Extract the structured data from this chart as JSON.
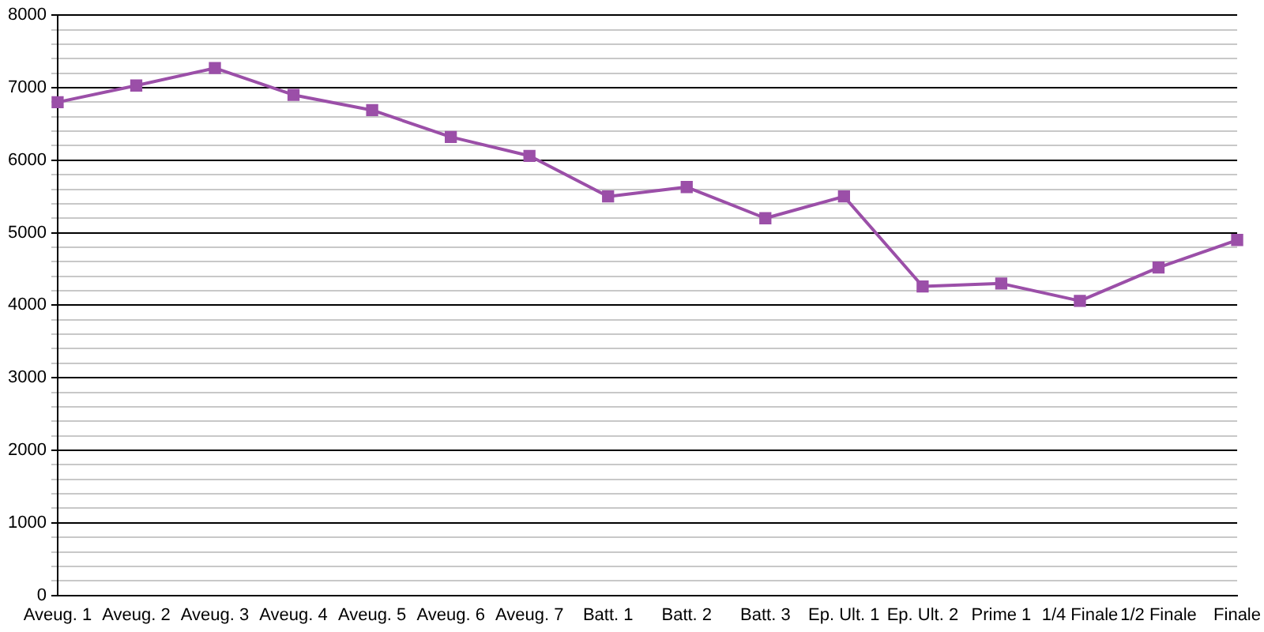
{
  "chart_data": {
    "type": "line",
    "categories": [
      "Aveug. 1",
      "Aveug. 2",
      "Aveug. 3",
      "Aveug. 4",
      "Aveug. 5",
      "Aveug. 6",
      "Aveug. 7",
      "Batt. 1",
      "Batt. 2",
      "Batt. 3",
      "Ep. Ult. 1",
      "Ep. Ult. 2",
      "Prime 1",
      "1/4 Finale",
      "1/2 Finale",
      "Finale"
    ],
    "series": [
      {
        "color": "#9b4fa8",
        "values": [
          6800,
          7030,
          7270,
          6900,
          6690,
          6320,
          6060,
          5500,
          5630,
          5200,
          5500,
          4260,
          4300,
          4060,
          4520,
          4900
        ]
      }
    ],
    "ylim": [
      0,
      8000
    ],
    "yticks": [
      0,
      {
        "value": 200,
        "label": null
      },
      {
        "value": 400,
        "label": null
      },
      {
        "value": 600,
        "label": null
      },
      {
        "value": 800,
        "label": null
      },
      1000,
      {
        "value": 1200,
        "label": null
      },
      {
        "value": 1400,
        "label": null
      },
      {
        "value": 1600,
        "label": null
      },
      {
        "value": 1800,
        "label": null
      },
      2000,
      {
        "value": 2200,
        "label": null
      },
      {
        "value": 2400,
        "label": null
      },
      {
        "value": 2600,
        "label": null
      },
      {
        "value": 2800,
        "label": null
      },
      3000,
      {
        "value": 3200,
        "label": null
      },
      {
        "value": 3400,
        "label": null
      },
      {
        "value": 3600,
        "label": null
      },
      {
        "value": 3800,
        "label": null
      },
      4000,
      {
        "value": 4200,
        "label": null
      },
      {
        "value": 4400,
        "label": null
      },
      {
        "value": 4600,
        "label": null
      },
      {
        "value": 4800,
        "label": null
      },
      5000,
      {
        "value": 5200,
        "label": null
      },
      {
        "value": 5400,
        "label": null
      },
      {
        "value": 5600,
        "label": null
      },
      {
        "value": 5800,
        "label": null
      },
      6000,
      {
        "value": 6200,
        "label": null
      },
      {
        "value": 6400,
        "label": null
      },
      {
        "value": 6600,
        "label": null
      },
      {
        "value": 6800,
        "label": null
      },
      7000,
      {
        "value": 7200,
        "label": null
      },
      {
        "value": 7400,
        "label": null
      },
      {
        "value": 7600,
        "label": null
      },
      {
        "value": 7800,
        "label": null
      },
      8000
    ],
    "grid": "y",
    "legend": false,
    "marker": "square",
    "line_style": "solid"
  }
}
